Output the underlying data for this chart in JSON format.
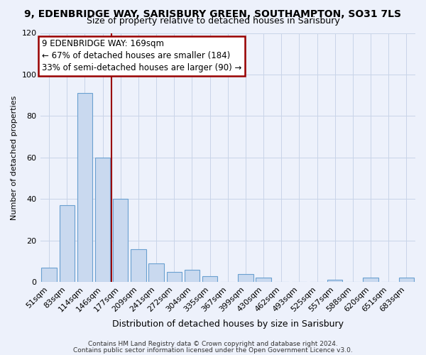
{
  "title": "9, EDENBRIDGE WAY, SARISBURY GREEN, SOUTHAMPTON, SO31 7LS",
  "subtitle": "Size of property relative to detached houses in Sarisbury",
  "xlabel": "Distribution of detached houses by size in Sarisbury",
  "ylabel": "Number of detached properties",
  "bar_labels": [
    "51sqm",
    "83sqm",
    "114sqm",
    "146sqm",
    "177sqm",
    "209sqm",
    "241sqm",
    "272sqm",
    "304sqm",
    "335sqm",
    "367sqm",
    "399sqm",
    "430sqm",
    "462sqm",
    "493sqm",
    "525sqm",
    "557sqm",
    "588sqm",
    "620sqm",
    "651sqm",
    "683sqm"
  ],
  "bar_values": [
    7,
    37,
    91,
    60,
    40,
    16,
    9,
    5,
    6,
    3,
    0,
    4,
    2,
    0,
    0,
    0,
    1,
    0,
    2,
    0,
    2
  ],
  "bar_color": "#c9d9ef",
  "bar_edge_color": "#6aa0d0",
  "ylim": [
    0,
    120
  ],
  "yticks": [
    0,
    20,
    40,
    60,
    80,
    100,
    120
  ],
  "vline_position": 3.5,
  "vline_color": "#990000",
  "annotation_line0": "9 EDENBRIDGE WAY: 169sqm",
  "annotation_line1": "← 67% of detached houses are smaller (184)",
  "annotation_line2": "33% of semi-detached houses are larger (90) →",
  "annotation_box_color": "#ffffff",
  "annotation_box_edge": "#990000",
  "footer1": "Contains HM Land Registry data © Crown copyright and database right 2024.",
  "footer2": "Contains public sector information licensed under the Open Government Licence v3.0.",
  "grid_color": "#c8d4e8",
  "bg_color": "#edf1fb",
  "title_fontsize": 10,
  "subtitle_fontsize": 9,
  "xlabel_fontsize": 9,
  "ylabel_fontsize": 8,
  "tick_fontsize": 8,
  "annotation_fontsize": 8.5,
  "footer_fontsize": 6.5
}
